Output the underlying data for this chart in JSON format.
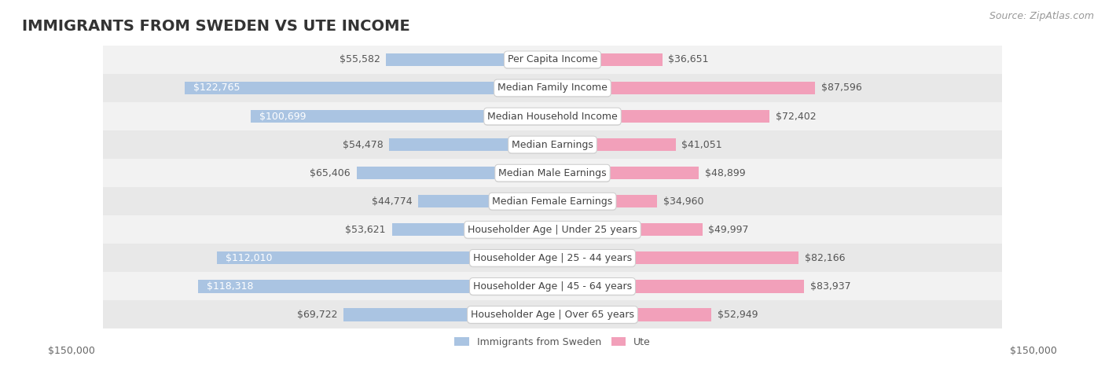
{
  "title": "IMMIGRANTS FROM SWEDEN VS UTE INCOME",
  "source": "Source: ZipAtlas.com",
  "categories": [
    "Per Capita Income",
    "Median Family Income",
    "Median Household Income",
    "Median Earnings",
    "Median Male Earnings",
    "Median Female Earnings",
    "Householder Age | Under 25 years",
    "Householder Age | 25 - 44 years",
    "Householder Age | 45 - 64 years",
    "Householder Age | Over 65 years"
  ],
  "sweden_values": [
    55582,
    122765,
    100699,
    54478,
    65406,
    44774,
    53621,
    112010,
    118318,
    69722
  ],
  "ute_values": [
    36651,
    87596,
    72402,
    41051,
    48899,
    34960,
    49997,
    82166,
    83937,
    52949
  ],
  "sweden_color": "#aac4e2",
  "ute_color": "#f2a0ba",
  "sweden_inner_color": "#6b9ecf",
  "ute_inner_color": "#e96090",
  "row_colors": [
    "#f2f2f2",
    "#e8e8e8"
  ],
  "max_value": 150000,
  "xlabel_left": "$150,000",
  "xlabel_right": "$150,000",
  "sweden_legend": "Immigrants from Sweden",
  "ute_legend": "Ute",
  "title_fontsize": 14,
  "source_fontsize": 9,
  "label_fontsize": 9,
  "category_fontsize": 9
}
